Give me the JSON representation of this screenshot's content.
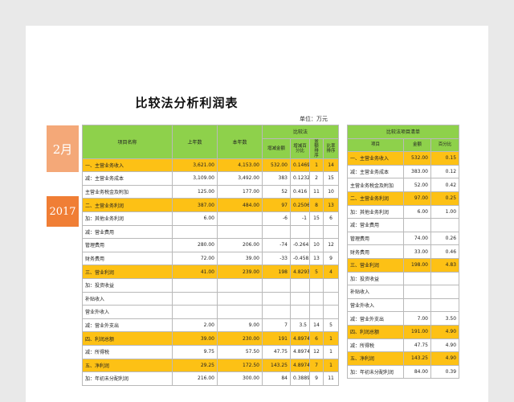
{
  "title": "比较法分析利润表",
  "unit": "单位：万元",
  "tags": {
    "month": "2月",
    "year": "2017"
  },
  "main": {
    "headers": {
      "name": "项目名称",
      "last_year": "上年数",
      "this_year": "本年数",
      "compare": "比较法",
      "diff": "增减金额",
      "pct": "增减百分比",
      "rank_amt": "金额排序",
      "rank_ratio": "比率排序"
    },
    "rows": [
      {
        "name": "一、主营业务收入",
        "last": "3,621.00",
        "cur": "4,153.00",
        "diff": "532.00",
        "pct": "0.1469",
        "ra": "1",
        "rr": "14",
        "hl": true
      },
      {
        "name": "减：主营业务成本",
        "last": "3,109.00",
        "cur": "3,492.00",
        "diff": "383",
        "pct": "0.1232",
        "ra": "2",
        "rr": "15",
        "hl": false
      },
      {
        "name": "主营业务税金及附加",
        "last": "125.00",
        "cur": "177.00",
        "diff": "52",
        "pct": "0.416",
        "ra": "11",
        "rr": "10",
        "hl": false
      },
      {
        "name": "二、主营业务利润",
        "last": "387.00",
        "cur": "484.00",
        "diff": "97",
        "pct": "0.2506",
        "ra": "8",
        "rr": "13",
        "hl": true
      },
      {
        "name": "加：其他业务利润",
        "last": "6.00",
        "cur": "",
        "diff": "-6",
        "pct": "-1",
        "ra": "15",
        "rr": "6",
        "hl": false
      },
      {
        "name": "减：营业费用",
        "last": "",
        "cur": "",
        "diff": "",
        "pct": "",
        "ra": "",
        "rr": "",
        "hl": false
      },
      {
        "name": "管理费用",
        "last": "280.00",
        "cur": "206.00",
        "diff": "-74",
        "pct": "-0.2643",
        "ra": "10",
        "rr": "12",
        "hl": false
      },
      {
        "name": "财务费用",
        "last": "72.00",
        "cur": "39.00",
        "diff": "-33",
        "pct": "-0.4583",
        "ra": "13",
        "rr": "9",
        "hl": false
      },
      {
        "name": "三、营业利润",
        "last": "41.00",
        "cur": "239.00",
        "diff": "198",
        "pct": "4.8293",
        "ra": "5",
        "rr": "4",
        "hl": true
      },
      {
        "name": "加：投资收益",
        "last": "",
        "cur": "",
        "diff": "",
        "pct": "",
        "ra": "",
        "rr": "",
        "hl": false
      },
      {
        "name": "补贴收入",
        "last": "",
        "cur": "",
        "diff": "",
        "pct": "",
        "ra": "",
        "rr": "",
        "hl": false
      },
      {
        "name": "营业外收入",
        "last": "",
        "cur": "",
        "diff": "",
        "pct": "",
        "ra": "",
        "rr": "",
        "hl": false
      },
      {
        "name": "减：营业外支出",
        "last": "2.00",
        "cur": "9.00",
        "diff": "7",
        "pct": "3.5",
        "ra": "14",
        "rr": "5",
        "hl": false
      },
      {
        "name": "四、利润总额",
        "last": "39.00",
        "cur": "230.00",
        "diff": "191",
        "pct": "4.8974",
        "ra": "6",
        "rr": "1",
        "hl": true
      },
      {
        "name": "减：所得税",
        "last": "9.75",
        "cur": "57.50",
        "diff": "47.75",
        "pct": "4.8974",
        "ra": "12",
        "rr": "1",
        "hl": false
      },
      {
        "name": "五、净利润",
        "last": "29.25",
        "cur": "172.50",
        "diff": "143.25",
        "pct": "4.8974",
        "ra": "7",
        "rr": "1",
        "hl": true
      },
      {
        "name": "加：年初未分配利润",
        "last": "216.00",
        "cur": "300.00",
        "diff": "84",
        "pct": "0.3889",
        "ra": "9",
        "rr": "11",
        "hl": false
      }
    ]
  },
  "side": {
    "header": "比较法项目清单",
    "cols": [
      "项目",
      "金额",
      "百分比"
    ],
    "rows": [
      {
        "name": "一、主营业务收入",
        "amt": "532.00",
        "pct": "0.15",
        "hl": true
      },
      {
        "name": "减：主营业务成本",
        "amt": "383.00",
        "pct": "0.12",
        "hl": false
      },
      {
        "name": "主营业务税金及附加",
        "amt": "52.00",
        "pct": "0.42",
        "hl": false
      },
      {
        "name": "二、主营业务利润",
        "amt": "97.00",
        "pct": "0.25",
        "hl": true
      },
      {
        "name": "加：其他业务利润",
        "amt": "6.00",
        "pct": "1.00",
        "hl": false
      },
      {
        "name": "减：营业费用",
        "amt": "",
        "pct": "",
        "hl": false
      },
      {
        "name": "管理费用",
        "amt": "74.00",
        "pct": "0.26",
        "hl": false
      },
      {
        "name": "财务费用",
        "amt": "33.00",
        "pct": "0.46",
        "hl": false
      },
      {
        "name": "三、营业利润",
        "amt": "198.00",
        "pct": "4.83",
        "hl": true
      },
      {
        "name": "加：投资收益",
        "amt": "",
        "pct": "",
        "hl": false
      },
      {
        "name": "补贴收入",
        "amt": "",
        "pct": "",
        "hl": false
      },
      {
        "name": "营业外收入",
        "amt": "",
        "pct": "",
        "hl": false
      },
      {
        "name": "减：营业外支出",
        "amt": "7.00",
        "pct": "3.50",
        "hl": false
      },
      {
        "name": "四、利润总额",
        "amt": "191.00",
        "pct": "4.90",
        "hl": true
      },
      {
        "name": "减：所得税",
        "amt": "47.75",
        "pct": "4.90",
        "hl": false
      },
      {
        "name": "五、净利润",
        "amt": "143.25",
        "pct": "4.90",
        "hl": true
      },
      {
        "name": "加：年初未分配利润",
        "amt": "84.00",
        "pct": "0.39",
        "hl": false
      }
    ]
  }
}
